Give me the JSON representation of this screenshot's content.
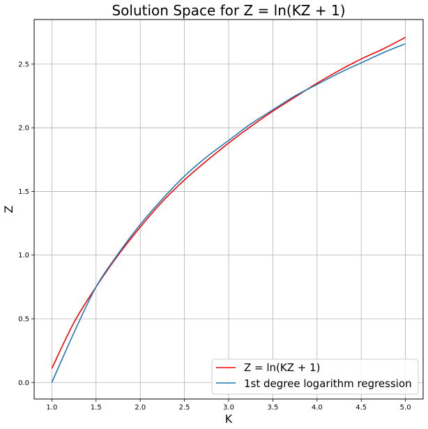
{
  "chart_data": {
    "type": "line",
    "title": "Solution Space for Z = ln(KZ + 1)",
    "xlabel": "K",
    "ylabel": "Z",
    "xlim": [
      0.8,
      5.2
    ],
    "ylim": [
      -0.13,
      2.85
    ],
    "xticks": [
      "1.0",
      "1.5",
      "2.0",
      "2.5",
      "3.0",
      "3.5",
      "4.0",
      "4.5",
      "5.0"
    ],
    "yticks": [
      "0.0",
      "0.5",
      "1.0",
      "1.5",
      "2.0",
      "2.5"
    ],
    "grid": true,
    "legend_position": "bottom-right",
    "series": [
      {
        "name": "Z = ln(KZ + 1)",
        "color": "#ff0000",
        "x": [
          1.0,
          1.25,
          1.5,
          1.75,
          2.0,
          2.25,
          2.5,
          2.75,
          3.0,
          3.25,
          3.5,
          3.75,
          4.0,
          4.25,
          4.5,
          4.75,
          5.0
        ],
        "y": [
          0.11,
          0.47,
          0.75,
          1.0,
          1.22,
          1.42,
          1.59,
          1.74,
          1.88,
          2.01,
          2.13,
          2.24,
          2.35,
          2.45,
          2.54,
          2.62,
          2.71
        ]
      },
      {
        "name": "1st degree logarithm regression",
        "color": "#1f77b4",
        "x": [
          1.0,
          1.25,
          1.5,
          1.75,
          2.0,
          2.25,
          2.5,
          2.75,
          3.0,
          3.25,
          3.5,
          3.75,
          4.0,
          4.25,
          4.5,
          4.75,
          5.0
        ],
        "y": [
          0.0,
          0.39,
          0.75,
          1.01,
          1.24,
          1.44,
          1.62,
          1.77,
          1.9,
          2.03,
          2.14,
          2.25,
          2.34,
          2.43,
          2.51,
          2.59,
          2.66
        ]
      }
    ]
  }
}
